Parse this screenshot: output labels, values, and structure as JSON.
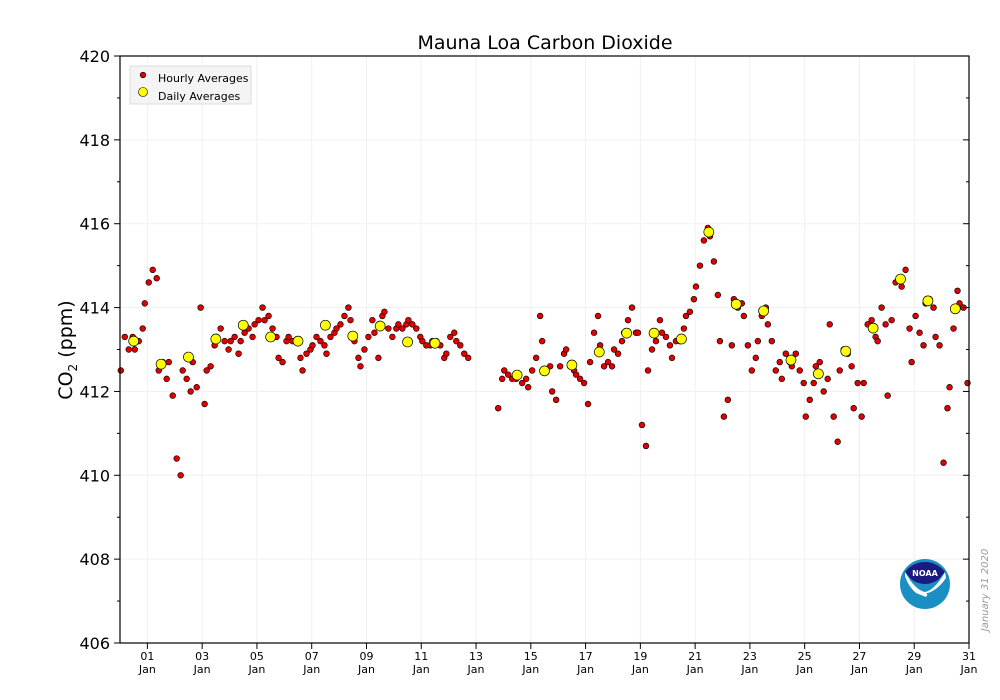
{
  "chart_data": {
    "type": "scatter",
    "title": "Mauna Loa Carbon Dioxide",
    "ylabel": {
      "main": "CO",
      "sub": "2",
      "unit": " (ppm)"
    },
    "xlabel": "",
    "ylim": [
      406,
      420
    ],
    "xlim": [
      0,
      31
    ],
    "yticks": [
      406,
      408,
      410,
      412,
      414,
      416,
      418,
      420
    ],
    "xticks": [
      {
        "value": 1,
        "day": "01",
        "month": "Jan"
      },
      {
        "value": 3,
        "day": "03",
        "month": "Jan"
      },
      {
        "value": 5,
        "day": "05",
        "month": "Jan"
      },
      {
        "value": 7,
        "day": "07",
        "month": "Jan"
      },
      {
        "value": 9,
        "day": "09",
        "month": "Jan"
      },
      {
        "value": 11,
        "day": "11",
        "month": "Jan"
      },
      {
        "value": 13,
        "day": "13",
        "month": "Jan"
      },
      {
        "value": 15,
        "day": "15",
        "month": "Jan"
      },
      {
        "value": 17,
        "day": "17",
        "month": "Jan"
      },
      {
        "value": 19,
        "day": "19",
        "month": "Jan"
      },
      {
        "value": 21,
        "day": "21",
        "month": "Jan"
      },
      {
        "value": 23,
        "day": "23",
        "month": "Jan"
      },
      {
        "value": 25,
        "day": "25",
        "month": "Jan"
      },
      {
        "value": 27,
        "day": "27",
        "month": "Jan"
      },
      {
        "value": 29,
        "day": "29",
        "month": "Jan"
      },
      {
        "value": 31,
        "day": "31",
        "month": "Jan"
      }
    ],
    "grid": true,
    "legend": {
      "placement": "top-left",
      "entries": [
        "Hourly Averages",
        "Daily Averages"
      ]
    },
    "series": [
      {
        "name": "Hourly Averages",
        "color": "#e00000",
        "x_start": 0,
        "step_days": 0.125,
        "values": [
          412.5,
          413.3,
          413.0,
          413.3,
          413.0,
          413.2,
          413.5,
          414.1,
          414.6,
          414.9,
          414.7,
          412.5,
          412.7,
          412.3,
          412.7,
          411.9,
          410.4,
          410.0,
          412.5,
          412.3,
          412.0,
          412.7,
          412.1,
          414.0,
          411.7,
          412.5,
          412.6,
          413.1,
          413.3,
          413.5,
          413.2,
          413.0,
          413.2,
          413.3,
          412.9,
          413.2,
          413.4,
          413.5,
          413.3,
          413.6,
          413.7,
          414.0,
          413.7,
          413.8,
          413.5,
          413.3,
          412.8,
          412.7,
          413.2,
          413.3,
          413.2,
          413.2,
          412.8,
          412.5,
          412.9,
          413.0,
          413.1,
          413.3,
          413.2,
          413.1,
          412.9,
          413.3,
          413.4,
          413.5,
          413.6,
          413.8,
          414.0,
          413.7,
          413.2,
          412.8,
          412.6,
          413.0,
          413.3,
          413.7,
          413.4,
          412.8,
          413.8,
          413.9,
          413.5,
          413.3,
          413.5,
          413.6,
          413.5,
          413.6,
          413.7,
          413.6,
          413.5,
          413.3,
          413.2,
          413.1,
          413.1,
          413.2,
          413.2,
          413.1,
          412.8,
          412.9,
          413.3,
          413.4,
          413.2,
          413.1,
          412.9,
          412.8,
          null,
          null,
          null,
          null,
          null,
          null,
          null,
          null,
          411.6,
          412.3,
          412.5,
          412.4,
          412.3,
          412.3,
          412.4,
          412.2,
          412.3,
          412.1,
          412.5,
          412.8,
          413.8,
          413.2,
          412.5,
          412.6,
          412.0,
          411.8,
          412.6,
          412.9,
          413.0,
          412.6,
          412.5,
          412.4,
          412.3,
          412.2,
          411.7,
          412.7,
          413.4,
          413.8,
          413.1,
          412.6,
          412.7,
          412.6,
          413.0,
          412.9,
          413.2,
          413.4,
          413.7,
          414.0,
          413.4,
          413.4,
          411.2,
          410.7,
          412.5,
          413.0,
          413.2,
          413.7,
          413.4,
          413.3,
          413.1,
          412.8,
          413.2,
          413.2,
          413.5,
          413.8,
          413.9,
          414.2,
          414.5,
          415.0,
          415.6,
          415.9,
          415.7,
          415.1,
          414.3,
          413.2,
          411.4,
          411.8,
          413.1,
          414.2,
          414.0,
          414.1,
          413.8,
          413.1,
          412.5,
          412.8,
          413.2,
          413.8,
          414.0,
          413.6,
          413.2,
          412.5,
          412.7,
          412.3,
          412.9,
          412.7,
          412.6,
          412.9,
          412.5,
          412.2,
          411.4,
          411.8,
          412.2,
          412.6,
          412.7,
          412.0,
          412.3,
          413.6,
          411.4,
          410.8,
          412.5,
          413.0,
          412.9,
          412.6,
          411.6,
          412.2,
          411.4,
          412.2,
          413.6,
          413.7,
          413.3,
          413.2,
          414.0,
          413.6,
          411.9,
          413.7,
          414.6,
          414.7,
          414.5,
          414.9,
          413.5,
          412.7,
          413.8,
          413.4,
          413.1,
          414.1,
          414.2,
          414.0,
          413.3,
          413.1,
          410.3,
          411.6,
          412.1,
          413.5,
          414.4,
          414.1,
          414.0,
          412.2
        ]
      },
      {
        "name": "Daily Averages",
        "color": "#ffff00",
        "x": [
          0.5,
          1.5,
          2.5,
          3.5,
          4.5,
          5.5,
          6.5,
          7.5,
          8.5,
          9.5,
          10.5,
          11.5,
          14.5,
          15.5,
          16.5,
          17.5,
          18.5,
          19.5,
          20.5,
          21.5,
          22.5,
          23.5,
          24.5,
          25.5,
          26.5,
          27.5,
          28.5,
          29.5,
          30.5
        ],
        "values": [
          413.2,
          412.65,
          412.82,
          413.25,
          413.58,
          413.3,
          413.2,
          413.58,
          413.32,
          413.56,
          413.18,
          413.15,
          412.39,
          412.49,
          412.63,
          412.94,
          413.39,
          413.39,
          413.25,
          415.8,
          414.08,
          413.92,
          412.75,
          412.42,
          412.96,
          413.51,
          414.68,
          414.16,
          413.97
        ]
      }
    ]
  },
  "date_stamp": "January 31 2020",
  "logo": {
    "text": "NOAA"
  }
}
